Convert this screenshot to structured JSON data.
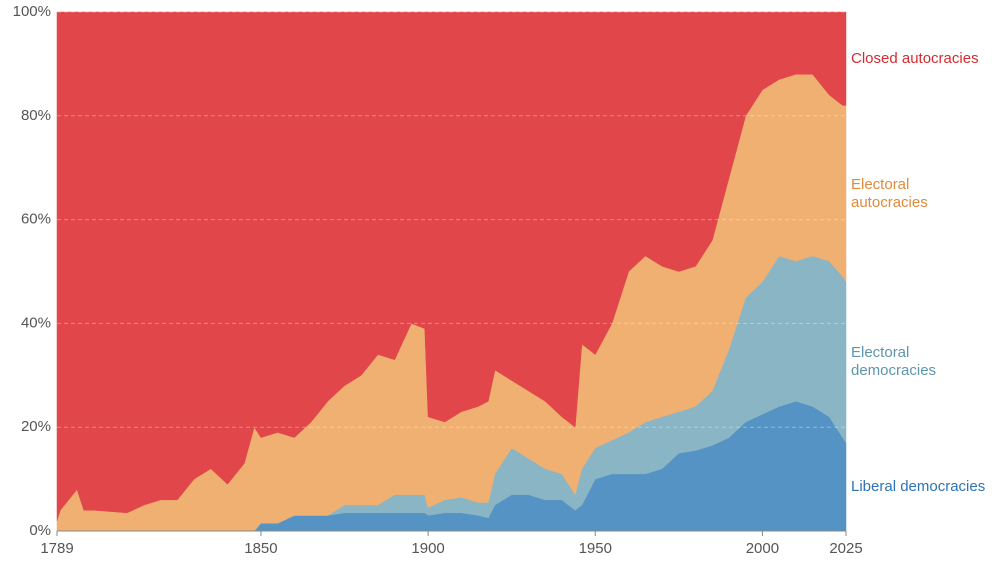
{
  "chart_data": {
    "type": "stacked_area",
    "x": [
      1789,
      1790,
      1795,
      1797,
      1800,
      1810,
      1815,
      1820,
      1825,
      1830,
      1835,
      1840,
      1845,
      1848,
      1850,
      1855,
      1860,
      1865,
      1870,
      1875,
      1880,
      1885,
      1890,
      1895,
      1899,
      1900,
      1905,
      1910,
      1915,
      1918,
      1920,
      1925,
      1930,
      1935,
      1940,
      1944,
      1946,
      1950,
      1955,
      1960,
      1965,
      1970,
      1975,
      1980,
      1985,
      1990,
      1995,
      2000,
      2005,
      2010,
      2015,
      2020,
      2024,
      2025
    ],
    "series": [
      {
        "name": "Liberal democracies",
        "color": "#5593c4",
        "values": [
          0,
          0,
          0,
          0,
          0,
          0,
          0,
          0,
          0,
          0,
          0,
          0,
          0,
          0,
          1.5,
          1.5,
          3,
          3,
          3,
          3.5,
          3.5,
          3.5,
          3.5,
          3.5,
          3.5,
          3,
          3.5,
          3.5,
          3,
          2.5,
          5,
          7,
          7,
          6,
          6,
          4,
          5,
          10,
          11,
          11,
          11,
          12,
          15,
          15.5,
          16.5,
          18,
          21,
          22.5,
          24,
          25,
          24,
          22,
          18,
          17
        ]
      },
      {
        "name": "Electoral democracies",
        "color": "#8ab5c4",
        "values": [
          0,
          0,
          0,
          0,
          0,
          0,
          0,
          0,
          0,
          0,
          0,
          0,
          0,
          0,
          0,
          0,
          0,
          0,
          0,
          1.5,
          1.5,
          1.5,
          3.5,
          3.5,
          3.5,
          1.5,
          2.5,
          3,
          2.5,
          3,
          6,
          9,
          7,
          6,
          5,
          3,
          7,
          6,
          6.5,
          8,
          10,
          10,
          8,
          8.5,
          10.5,
          17,
          24,
          25.5,
          29,
          27,
          29,
          30,
          31,
          31
        ]
      },
      {
        "name": "Electoral autocracies",
        "color": "#efb072",
        "values": [
          2,
          4,
          8,
          4,
          4,
          3.5,
          5,
          6,
          6,
          10,
          12,
          9,
          13,
          20,
          16.5,
          17.5,
          15,
          18,
          22,
          23,
          25,
          29,
          26,
          33,
          32,
          17.5,
          15,
          16.5,
          18.5,
          19.5,
          20,
          13,
          13,
          13,
          11,
          13,
          24,
          18,
          22.5,
          31,
          32,
          29,
          27,
          27,
          29,
          33,
          35,
          37,
          34,
          36,
          35,
          32,
          33,
          34
        ]
      },
      {
        "name": "Closed autocracies",
        "color": "#e0464a",
        "values": [
          98,
          96,
          92,
          96,
          96,
          96.5,
          95,
          94,
          94,
          90,
          88,
          91,
          87,
          80,
          82,
          81,
          82,
          79,
          75,
          72,
          70,
          66,
          67,
          60,
          61,
          78,
          79,
          77,
          76,
          75,
          69,
          71,
          73,
          75,
          78,
          80,
          64,
          66,
          60,
          50,
          47,
          49,
          50,
          49,
          44,
          32,
          20,
          15,
          13,
          12,
          12,
          16,
          18,
          18
        ]
      }
    ],
    "xlim": [
      1789,
      2025
    ],
    "xticks": [
      1789,
      1850,
      1900,
      1950,
      2000,
      2025
    ],
    "ylim": [
      0,
      100
    ],
    "yticks": [
      {
        "value": 0,
        "label": "0%"
      },
      {
        "value": 20,
        "label": "20%"
      },
      {
        "value": 40,
        "label": "40%"
      },
      {
        "value": 60,
        "label": "60%"
      },
      {
        "value": 80,
        "label": "80%"
      },
      {
        "value": 100,
        "label": "100%"
      }
    ],
    "grid": true
  }
}
